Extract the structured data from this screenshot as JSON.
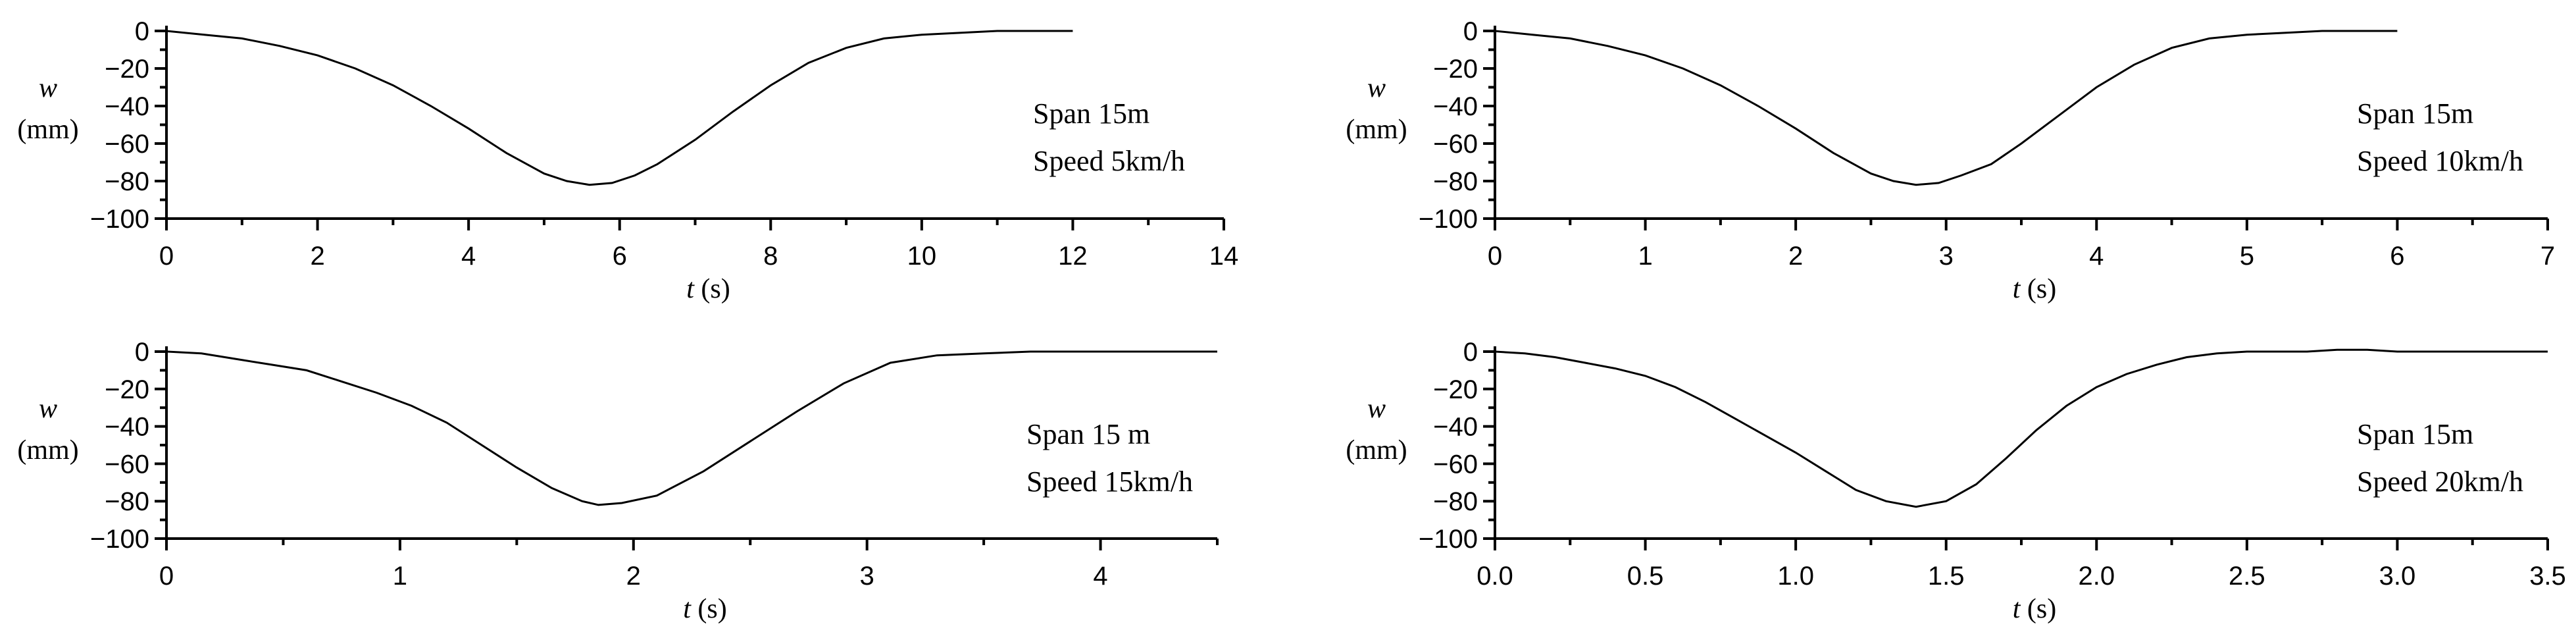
{
  "chart_data": [
    {
      "type": "line",
      "xlabel_var": "t",
      "xlabel_unit": " (s)",
      "ylabel_var": "w",
      "ylabel_unit": "(mm)",
      "xlim": [
        0,
        14
      ],
      "ylim": [
        -100,
        0
      ],
      "x_ticks": [
        "0",
        "2",
        "4",
        "6",
        "8",
        "10",
        "12",
        "14"
      ],
      "y_ticks": [
        "0",
        "−20",
        "−40",
        "−60",
        "−80",
        "−100"
      ],
      "annotation": [
        "Span 15m",
        "Speed 5km/h"
      ],
      "series": [
        {
          "x": [
            0,
            0.5,
            1,
            1.5,
            2,
            2.5,
            3,
            3.5,
            4,
            4.5,
            5,
            5.3,
            5.6,
            5.9,
            6.2,
            6.5,
            7,
            7.5,
            8,
            8.5,
            9,
            9.5,
            10,
            10.5,
            11,
            11.5,
            12
          ],
          "y": [
            0,
            -2,
            -4,
            -8,
            -13,
            -20,
            -29,
            -40,
            -52,
            -65,
            -76,
            -80,
            -82,
            -81,
            -77,
            -71,
            -58,
            -43,
            -29,
            -17,
            -9,
            -4,
            -2,
            -1,
            0,
            0,
            0
          ]
        }
      ]
    },
    {
      "type": "line",
      "xlabel_var": "t",
      "xlabel_unit": " (s)",
      "ylabel_var": "w",
      "ylabel_unit": "(mm)",
      "xlim": [
        0,
        7
      ],
      "ylim": [
        -100,
        0
      ],
      "x_ticks": [
        "0",
        "1",
        "2",
        "3",
        "4",
        "5",
        "6",
        "7"
      ],
      "y_ticks": [
        "0",
        "−20",
        "−40",
        "−60",
        "−80",
        "−100"
      ],
      "annotation": [
        "Span 15m",
        "Speed 10km/h"
      ],
      "series": [
        {
          "x": [
            0,
            0.25,
            0.5,
            0.75,
            1,
            1.25,
            1.5,
            1.75,
            2,
            2.25,
            2.5,
            2.65,
            2.8,
            2.95,
            3.1,
            3.3,
            3.5,
            3.75,
            4,
            4.25,
            4.5,
            4.75,
            5,
            5.25,
            5.5,
            5.75,
            6
          ],
          "y": [
            0,
            -2,
            -4,
            -8,
            -13,
            -20,
            -29,
            -40,
            -52,
            -65,
            -76,
            -80,
            -82,
            -81,
            -77,
            -71,
            -60,
            -45,
            -30,
            -18,
            -9,
            -4,
            -2,
            -1,
            0,
            0,
            0
          ]
        }
      ]
    },
    {
      "type": "line",
      "xlabel_var": "t",
      "xlabel_unit": " (s)",
      "ylabel_var": "w",
      "ylabel_unit": "(mm)",
      "xlim": [
        0,
        4.5
      ],
      "ylim": [
        -100,
        0
      ],
      "x_ticks": [
        "0",
        "1",
        "2",
        "3",
        "4"
      ],
      "y_ticks": [
        "0",
        "−20",
        "−40",
        "−60",
        "−80",
        "−100"
      ],
      "annotation": [
        "Span 15 m",
        "Speed 15km/h"
      ],
      "series": [
        {
          "x": [
            0,
            0.15,
            0.3,
            0.45,
            0.6,
            0.75,
            0.9,
            1.05,
            1.2,
            1.35,
            1.5,
            1.65,
            1.78,
            1.85,
            1.95,
            2.1,
            2.3,
            2.5,
            2.7,
            2.9,
            3.1,
            3.3,
            3.5,
            3.7,
            3.9,
            4.1,
            4.3,
            4.5
          ],
          "y": [
            0,
            -1,
            -4,
            -7,
            -10,
            -16,
            -22,
            -29,
            -38,
            -50,
            -62,
            -73,
            -80,
            -82,
            -81,
            -77,
            -64,
            -48,
            -32,
            -17,
            -6,
            -2,
            -1,
            0,
            0,
            0,
            0,
            0
          ]
        }
      ]
    },
    {
      "type": "line",
      "xlabel_var": "t",
      "xlabel_unit": " (s)",
      "ylabel_var": "w",
      "ylabel_unit": "(mm)",
      "xlim": [
        0,
        3.5
      ],
      "ylim": [
        -100,
        0
      ],
      "x_ticks": [
        "0.0",
        "0.5",
        "1.0",
        "1.5",
        "2.0",
        "2.5",
        "3.0",
        "3.5"
      ],
      "y_ticks": [
        "0",
        "−20",
        "−40",
        "−60",
        "−80",
        "−100"
      ],
      "annotation": [
        "Span 15m",
        "Speed 20km/h"
      ],
      "series": [
        {
          "x": [
            0,
            0.1,
            0.2,
            0.3,
            0.4,
            0.5,
            0.6,
            0.7,
            0.8,
            0.9,
            1.0,
            1.1,
            1.2,
            1.3,
            1.4,
            1.5,
            1.6,
            1.7,
            1.8,
            1.9,
            2.0,
            2.1,
            2.2,
            2.3,
            2.4,
            2.5,
            2.6,
            2.7,
            2.8,
            2.9,
            3.0,
            3.1,
            3.2,
            3.3,
            3.4,
            3.5
          ],
          "y": [
            0,
            -1,
            -3,
            -6,
            -9,
            -13,
            -19,
            -27,
            -36,
            -45,
            -54,
            -64,
            -74,
            -80,
            -83,
            -80,
            -71,
            -57,
            -42,
            -29,
            -19,
            -12,
            -7,
            -3,
            -1,
            0,
            0,
            0,
            1,
            1,
            0,
            0,
            0,
            0,
            0,
            0
          ]
        }
      ]
    }
  ]
}
